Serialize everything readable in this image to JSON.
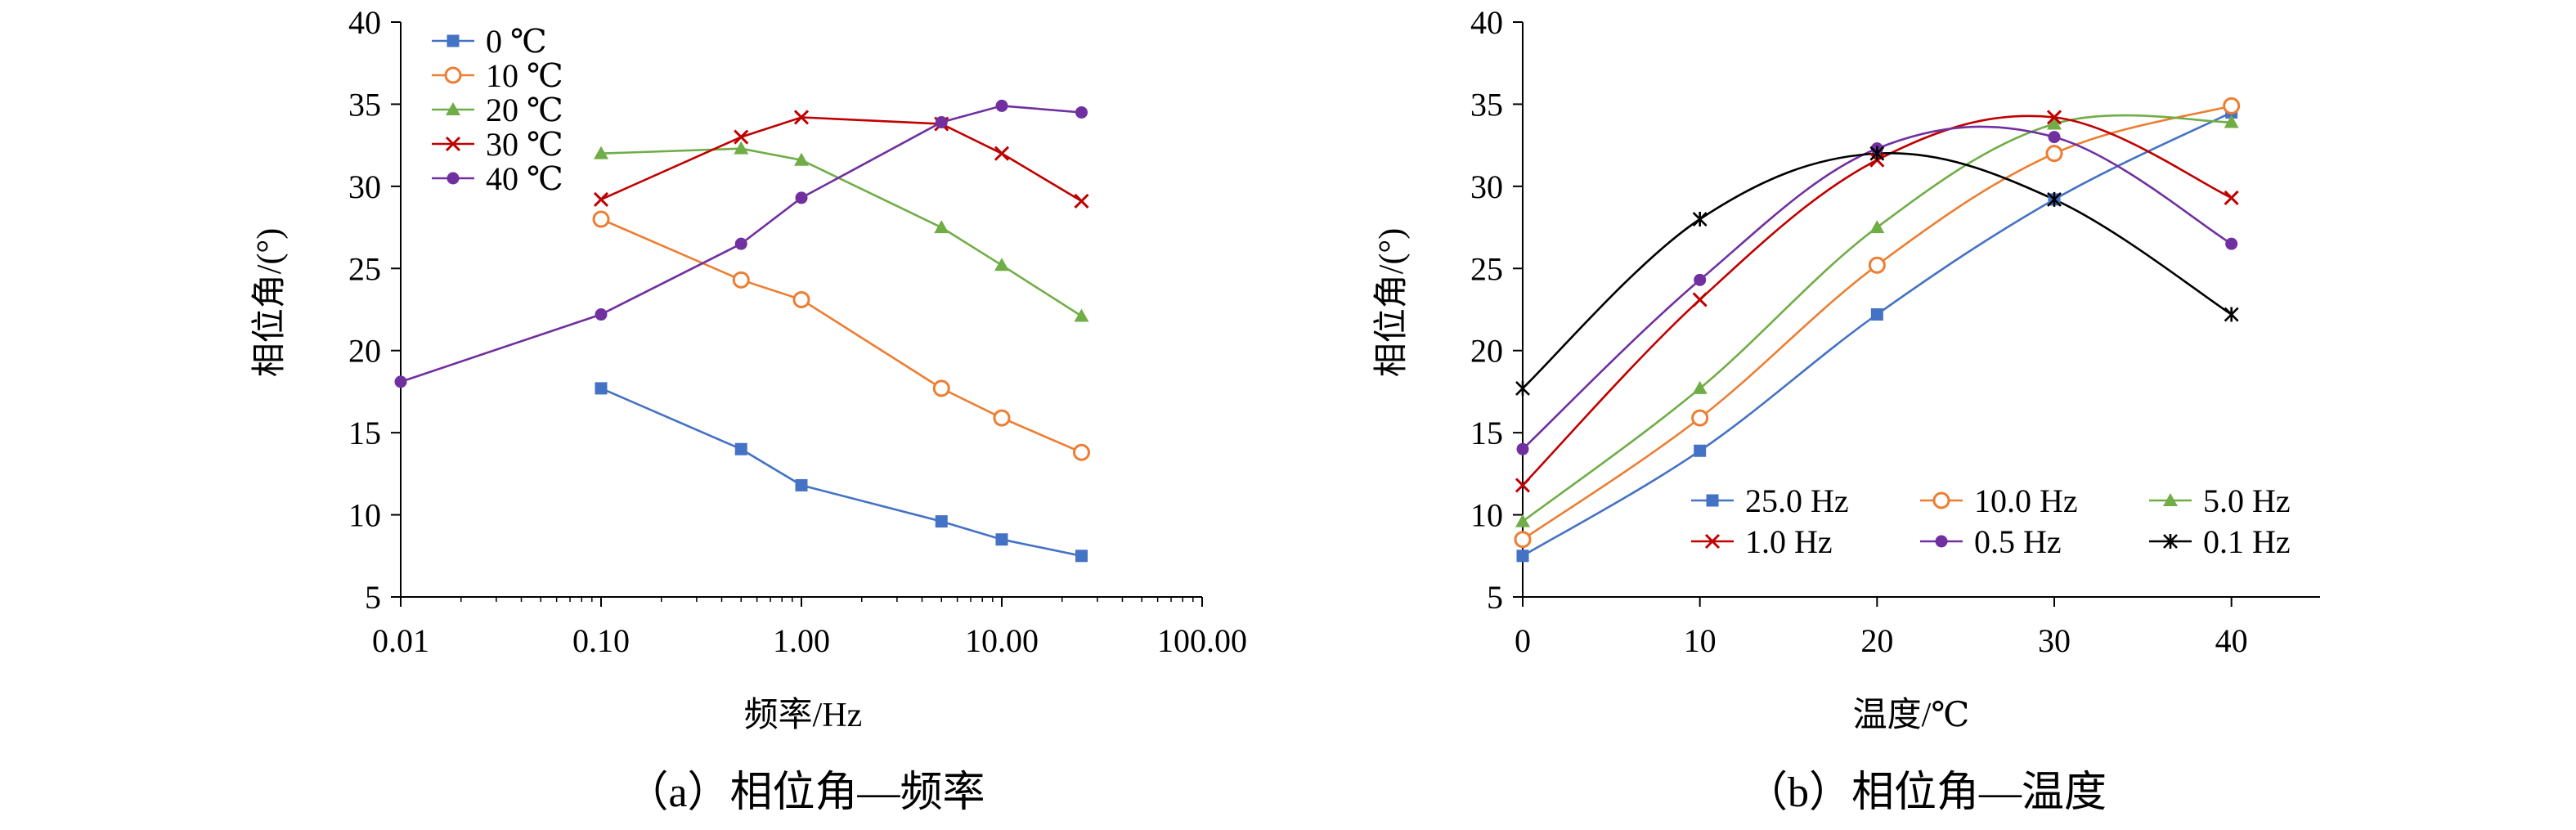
{
  "chart_data": [
    {
      "panel": "a",
      "caption": "（a）相位角—频率",
      "type": "line",
      "xlabel": "频率/Hz",
      "ylabel": "相位角/(°)",
      "xscale": "log",
      "xlim": [
        0.01,
        100
      ],
      "ylim": [
        5,
        40
      ],
      "xticks": [
        "0.01",
        "0.10",
        "1.00",
        "10.00",
        "100.00"
      ],
      "xtick_values": [
        0.01,
        0.1,
        1,
        10,
        100
      ],
      "yticks": [
        5,
        10,
        15,
        20,
        25,
        30,
        35,
        40
      ],
      "legend_position": "top-left",
      "series": [
        {
          "name": "0 ℃",
          "color": "#4472C4",
          "marker": "square",
          "x": [
            0.1,
            0.5,
            1,
            5,
            10,
            25
          ],
          "y": [
            17.7,
            14.0,
            11.8,
            9.6,
            8.5,
            7.5
          ]
        },
        {
          "name": "10 ℃",
          "color": "#ED7D31",
          "marker": "circle",
          "x": [
            0.1,
            0.5,
            1,
            5,
            10,
            25
          ],
          "y": [
            28.0,
            24.3,
            23.1,
            17.7,
            15.9,
            13.8
          ]
        },
        {
          "name": "20 ℃",
          "color": "#70AD47",
          "marker": "triangle",
          "x": [
            0.1,
            0.5,
            1,
            5,
            10,
            25
          ],
          "y": [
            32.0,
            32.3,
            31.6,
            27.5,
            25.2,
            22.1
          ]
        },
        {
          "name": "30 ℃",
          "color": "#C00000",
          "marker": "x",
          "x": [
            0.1,
            0.5,
            1,
            5,
            10,
            25
          ],
          "y": [
            29.2,
            33.0,
            34.2,
            33.8,
            32.0,
            29.1
          ]
        },
        {
          "name": "40 ℃",
          "color": "#7030A0",
          "marker": "dot",
          "x": [
            0.01,
            0.1,
            0.5,
            1,
            5,
            10,
            25
          ],
          "y": [
            18.1,
            22.2,
            26.5,
            29.3,
            33.9,
            34.9,
            34.5
          ]
        }
      ]
    },
    {
      "panel": "b",
      "caption": "（b）相位角—温度",
      "type": "line",
      "xlabel": "温度/℃",
      "ylabel": "相位角/(°)",
      "xlim": [
        0,
        45
      ],
      "ylim": [
        5,
        40
      ],
      "xticks": [
        0,
        10,
        20,
        30,
        40
      ],
      "yticks": [
        5,
        10,
        15,
        20,
        25,
        30,
        35,
        40
      ],
      "legend_position": "bottom-right",
      "series": [
        {
          "name": "25.0 Hz",
          "color": "#4472C4",
          "marker": "square",
          "x": [
            0,
            10,
            20,
            30,
            40
          ],
          "y": [
            7.5,
            13.9,
            22.2,
            29.2,
            34.5
          ]
        },
        {
          "name": "10.0 Hz",
          "color": "#ED7D31",
          "marker": "circle",
          "x": [
            0,
            10,
            20,
            30,
            40
          ],
          "y": [
            8.5,
            15.9,
            25.2,
            32.0,
            34.9
          ]
        },
        {
          "name": "5.0 Hz",
          "color": "#70AD47",
          "marker": "triangle",
          "x": [
            0,
            10,
            20,
            30,
            40
          ],
          "y": [
            9.6,
            17.7,
            27.5,
            33.8,
            33.9
          ]
        },
        {
          "name": "1.0 Hz",
          "color": "#C00000",
          "marker": "x",
          "x": [
            0,
            10,
            20,
            30,
            40
          ],
          "y": [
            11.8,
            23.1,
            31.6,
            34.2,
            29.3
          ]
        },
        {
          "name": "0.5 Hz",
          "color": "#7030A0",
          "marker": "dot",
          "x": [
            0,
            10,
            20,
            30,
            40
          ],
          "y": [
            14.0,
            24.3,
            32.3,
            33.0,
            26.5
          ]
        },
        {
          "name": "0.1 Hz",
          "color": "#000000",
          "marker": "star",
          "x": [
            0,
            10,
            20,
            30,
            40
          ],
          "y": [
            17.7,
            28.0,
            32.0,
            29.2,
            22.2
          ]
        }
      ]
    }
  ]
}
